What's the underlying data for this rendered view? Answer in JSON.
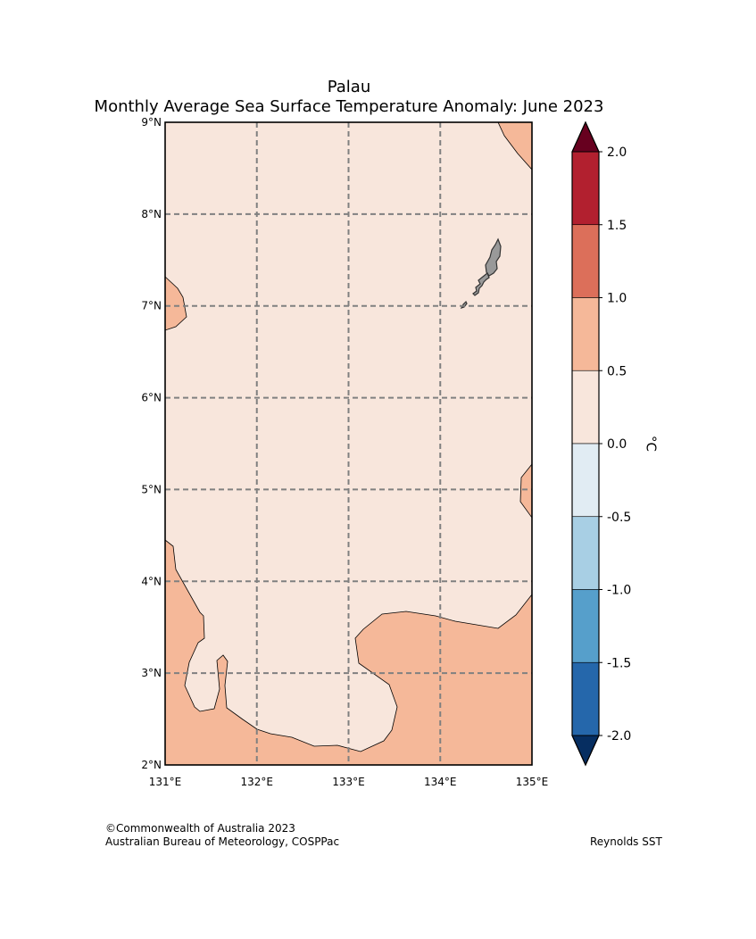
{
  "header": {
    "title": "Palau",
    "subtitle": "Monthly Average Sea Surface Temperature Anomaly: June 2023"
  },
  "map": {
    "lon_range": [
      131,
      135
    ],
    "lat_range": [
      2,
      9
    ],
    "lon_ticks": [
      {
        "value": 131,
        "label": "131°E"
      },
      {
        "value": 132,
        "label": "132°E"
      },
      {
        "value": 133,
        "label": "133°E"
      },
      {
        "value": 134,
        "label": "134°E"
      },
      {
        "value": 135,
        "label": "135°E"
      }
    ],
    "lat_ticks": [
      {
        "value": 9,
        "label": "9°N"
      },
      {
        "value": 8,
        "label": "8°N"
      },
      {
        "value": 7,
        "label": "7°N"
      },
      {
        "value": 6,
        "label": "6°N"
      },
      {
        "value": 5,
        "label": "5°N"
      },
      {
        "value": 4,
        "label": "4°N"
      },
      {
        "value": 3,
        "label": "3°N"
      },
      {
        "value": 2,
        "label": "2°N"
      }
    ],
    "gridlines": true,
    "background_class_color": "#f8e6dc",
    "warm_class_color": "#f5b899",
    "land_color": "#999999"
  },
  "colorbar": {
    "unit": "°C",
    "ticks": [
      "2.0",
      "1.5",
      "1.0",
      "0.5",
      "0.0",
      "-0.5",
      "-1.0",
      "-1.5",
      "-2.0"
    ],
    "bins": [
      {
        "from": 1.5,
        "to": 2.0,
        "color": "#b2202f"
      },
      {
        "from": 1.0,
        "to": 1.5,
        "color": "#dc6f5a"
      },
      {
        "from": 0.5,
        "to": 1.0,
        "color": "#f5b899"
      },
      {
        "from": 0.0,
        "to": 0.5,
        "color": "#f8e6dc"
      },
      {
        "from": -0.5,
        "to": 0.0,
        "color": "#e1ecf3"
      },
      {
        "from": -1.0,
        "to": -0.5,
        "color": "#a8cfe4"
      },
      {
        "from": -1.5,
        "to": -1.0,
        "color": "#569fcb"
      },
      {
        "from": -2.0,
        "to": -1.5,
        "color": "#2567ab"
      }
    ],
    "over_color": "#67001f",
    "under_color": "#062e61"
  },
  "footer": {
    "copyright": "©Commonwealth of Australia 2023",
    "agency": "Australian Bureau of Meteorology, COSPPac",
    "source": "Reynolds SST"
  }
}
